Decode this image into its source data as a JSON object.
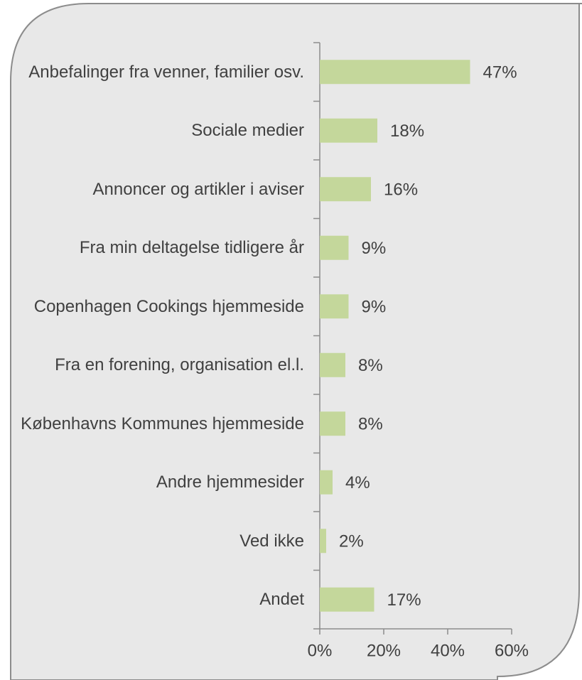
{
  "chart_data": {
    "type": "bar",
    "orientation": "horizontal",
    "categories": [
      "Anbefalinger fra venner, familier osv.",
      "Sociale medier",
      "Annoncer og artikler i aviser",
      "Fra min deltagelse tidligere år",
      "Copenhagen Cookings hjemmeside",
      "Fra en forening, organisation el.l.",
      "Københavns Kommunes hjemmeside",
      "Andre hjemmesider",
      "Ved ikke",
      "Andet"
    ],
    "values": [
      47,
      18,
      16,
      9,
      9,
      8,
      8,
      4,
      2,
      17
    ],
    "value_labels": [
      "47%",
      "18%",
      "16%",
      "9%",
      "9%",
      "8%",
      "8%",
      "4%",
      "2%",
      "17%"
    ],
    "color": "#c4d79b",
    "xlim": [
      0,
      60
    ],
    "xticks": [
      {
        "value": 0,
        "label": "0%"
      },
      {
        "value": 20,
        "label": "20%"
      },
      {
        "value": 40,
        "label": "40%"
      },
      {
        "value": 60,
        "label": "60%"
      }
    ]
  }
}
